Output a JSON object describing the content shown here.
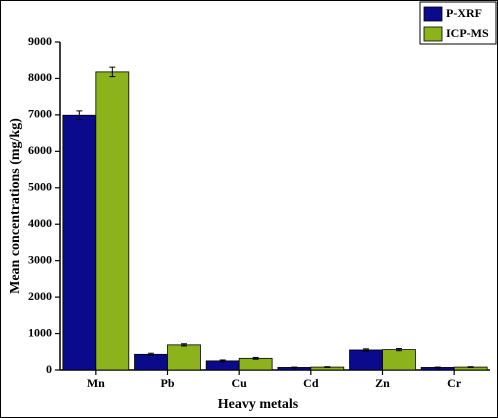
{
  "chart_data": {
    "type": "bar",
    "x_label": "Heavy metals",
    "y_label": "Mean concentrations (mg/kg)",
    "categories": [
      "Mn",
      "Pb",
      "Cu",
      "Cd",
      "Zn",
      "Cr"
    ],
    "series": [
      {
        "name": "P-XRF",
        "color": "#0a0a8c",
        "values": [
          6990,
          430,
          250,
          70,
          550,
          70
        ],
        "errors": [
          120,
          30,
          25,
          10,
          30,
          10
        ]
      },
      {
        "name": "ICP-MS",
        "color": "#8cb21c",
        "values": [
          8180,
          690,
          320,
          80,
          560,
          80
        ],
        "errors": [
          130,
          30,
          25,
          10,
          30,
          10
        ]
      }
    ],
    "ylim": [
      0,
      9000
    ],
    "yticks": [
      0,
      1000,
      2000,
      3000,
      4000,
      5000,
      6000,
      7000,
      8000,
      9000
    ],
    "legend": "top-right"
  }
}
